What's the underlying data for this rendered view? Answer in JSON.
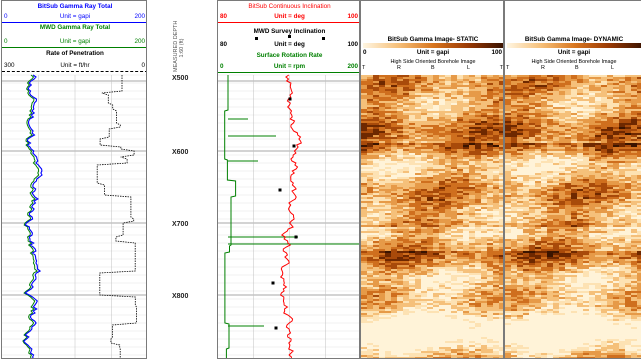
{
  "track1": {
    "curve1": {
      "title": "BitSub Gamma Ray Total",
      "min": "0",
      "unit": "Unit = gapi",
      "max": "200",
      "color": "#0000ff"
    },
    "curve2": {
      "title": "MWD Gamma Ray Total",
      "min": "0",
      "unit": "Unit = gapi",
      "max": "200",
      "color": "#008000"
    },
    "curve3": {
      "title": "Rate of Penetration",
      "min": "300",
      "unit": "Unit = ft/hr",
      "max": "0",
      "color": "#000000"
    }
  },
  "depth_track": {
    "label_line1": "MEASURED DEPTH",
    "label_line2": "1:60 (ft)",
    "depths": [
      "X500",
      "X600",
      "X700",
      "X800"
    ]
  },
  "track2": {
    "curve1": {
      "title": "BitSub Continuous Inclination",
      "min": "80",
      "unit": "Unit = deg",
      "max": "100",
      "color": "#ff0000"
    },
    "curve2": {
      "title": "MWD Survey Inclination",
      "min": "80",
      "unit": "Unit = deg",
      "max": "100",
      "color": "#000000"
    },
    "curve3": {
      "title": "Surface Rotation Rate",
      "min": "0",
      "unit": "Unit = rpm",
      "max": "200",
      "color": "#008000"
    }
  },
  "image_static": {
    "title": "BitSub Gamma Image- STATIC",
    "min": "0",
    "unit": "Unit = gapi",
    "max": "100",
    "subtitle": "High Side Oriented Borehole Image",
    "orient": [
      "T",
      "R",
      "B",
      "L",
      "T"
    ]
  },
  "image_dynamic": {
    "title": "BitSub Gamma Image- DYNAMIC",
    "unit": "Unit = gapi",
    "subtitle": "High Side Oriented Borehole Image",
    "orient": [
      "T",
      "R",
      "B",
      "L"
    ]
  },
  "colors": {
    "track_border": "#7a7a7a",
    "grid": "#b0b0b0",
    "image_dark": "#7a2a00",
    "image_light": "#fff3d8"
  }
}
